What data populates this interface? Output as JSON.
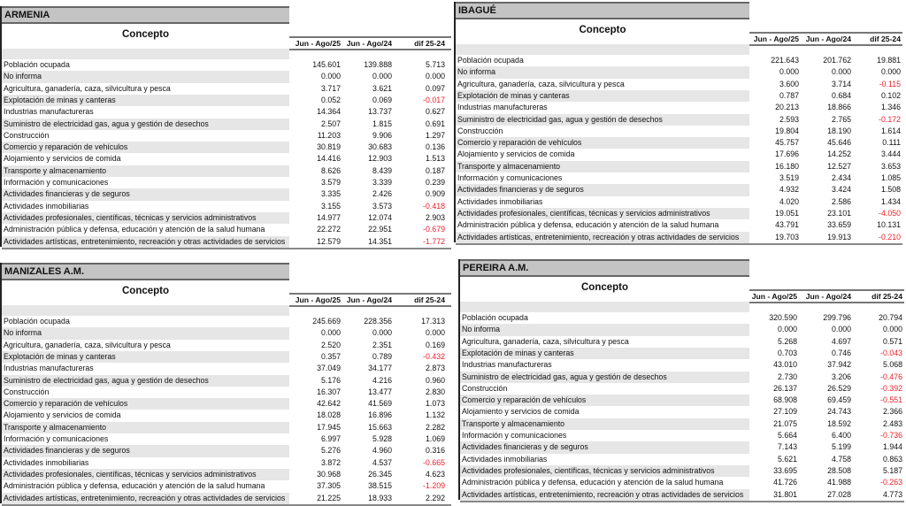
{
  "column_headers": {
    "concept": "Concepto",
    "col1": "Jun - Ago/25",
    "col2": "Jun - Ago/24",
    "col3": "dif 25-24"
  },
  "panels": [
    {
      "title": "ARMENIA",
      "rows": [
        [
          "Población ocupada",
          "145.601",
          "139.888",
          "5.713"
        ],
        [
          "No informa",
          "0.000",
          "0.000",
          "0.000"
        ],
        [
          "Agricultura, ganadería, caza, silvicultura y pesca",
          "3.717",
          "3.621",
          "0.097"
        ],
        [
          "Explotación de minas y canteras",
          "0.052",
          "0.069",
          "-0.017"
        ],
        [
          "Industrias manufactureras",
          "14.364",
          "13.737",
          "0.627"
        ],
        [
          "Suministro de electricidad gas, agua y gestión de desechos",
          "2.507",
          "1.815",
          "0.691"
        ],
        [
          "Construcción",
          "11.203",
          "9.906",
          "1.297"
        ],
        [
          "Comercio y reparación de vehículos",
          "30.819",
          "30.683",
          "0.136"
        ],
        [
          "Alojamiento y servicios de comida",
          "14.416",
          "12.903",
          "1.513"
        ],
        [
          "Transporte y almacenamiento",
          "8.626",
          "8.439",
          "0.187"
        ],
        [
          "Información y comunicaciones",
          "3.579",
          "3.339",
          "0.239"
        ],
        [
          "Actividades financieras y de seguros",
          "3.335",
          "2.426",
          "0.909"
        ],
        [
          "Actividades inmobiliarias",
          "3.155",
          "3.573",
          "-0.418"
        ],
        [
          "Actividades profesionales, científicas, técnicas y servicios administrativos",
          "14.977",
          "12.074",
          "2.903"
        ],
        [
          "Administración pública y defensa, educación y atención de la salud humana",
          "22.272",
          "22.951",
          "-0.679"
        ],
        [
          "Actividades artísticas, entretenimiento, recreación y otras actividades de servicios",
          "12.579",
          "14.351",
          "-1.772"
        ]
      ]
    },
    {
      "title": "IBAGUÉ",
      "rows": [
        [
          "Población ocupada",
          "221.643",
          "201.762",
          "19.881"
        ],
        [
          "No informa",
          "0.000",
          "0.000",
          "0.000"
        ],
        [
          "Agricultura, ganadería, caza, silvicultura y pesca",
          "3.600",
          "3.714",
          "-0.115"
        ],
        [
          "Explotación de minas y canteras",
          "0.787",
          "0.684",
          "0.102"
        ],
        [
          "Industrias manufactureras",
          "20.213",
          "18.866",
          "1.346"
        ],
        [
          "Suministro de electricidad gas, agua y gestión de desechos",
          "2.593",
          "2.765",
          "-0.172"
        ],
        [
          "Construcción",
          "19.804",
          "18.190",
          "1.614"
        ],
        [
          "Comercio y reparación de vehículos",
          "45.757",
          "45.646",
          "0.111"
        ],
        [
          "Alojamiento y servicios de comida",
          "17.696",
          "14.252",
          "3.444"
        ],
        [
          "Transporte y almacenamiento",
          "16.180",
          "12.527",
          "3.653"
        ],
        [
          "Información y comunicaciones",
          "3.519",
          "2.434",
          "1.085"
        ],
        [
          "Actividades financieras y de seguros",
          "4.932",
          "3.424",
          "1.508"
        ],
        [
          "Actividades inmobiliarias",
          "4.020",
          "2.586",
          "1.434"
        ],
        [
          "Actividades profesionales, científicas, técnicas y servicios administrativos",
          "19.051",
          "23.101",
          "-4.050"
        ],
        [
          "Administración pública y defensa, educación y atención de la salud humana",
          "43.791",
          "33.659",
          "10.131"
        ],
        [
          "Actividades artísticas, entretenimiento, recreación y otras actividades de servicios",
          "19.703",
          "19.913",
          "-0.210"
        ]
      ]
    },
    {
      "title": "MANIZALES A.M.",
      "rows": [
        [
          "Población ocupada",
          "245.669",
          "228.356",
          "17.313"
        ],
        [
          "No informa",
          "0.000",
          "0.000",
          "0.000"
        ],
        [
          "Agricultura, ganadería, caza, silvicultura y pesca",
          "2.520",
          "2.351",
          "0.169"
        ],
        [
          "Explotación de minas y canteras",
          "0.357",
          "0.789",
          "-0.432"
        ],
        [
          "Industrias manufactureras",
          "37.049",
          "34.177",
          "2.873"
        ],
        [
          "Suministro de electricidad gas, agua y gestión de desechos",
          "5.176",
          "4.216",
          "0.960"
        ],
        [
          "Construcción",
          "16.307",
          "13.477",
          "2.830"
        ],
        [
          "Comercio y reparación de vehículos",
          "42.642",
          "41.569",
          "1.073"
        ],
        [
          "Alojamiento y servicios de comida",
          "18.028",
          "16.896",
          "1.132"
        ],
        [
          "Transporte y almacenamiento",
          "17.945",
          "15.663",
          "2.282"
        ],
        [
          "Información y comunicaciones",
          "6.997",
          "5.928",
          "1.069"
        ],
        [
          "Actividades financieras y de seguros",
          "5.276",
          "4.960",
          "0.316"
        ],
        [
          "Actividades inmobiliarias",
          "3.872",
          "4.537",
          "-0.665"
        ],
        [
          "Actividades profesionales, científicas, técnicas y servicios administrativos",
          "30.968",
          "26.345",
          "4.623"
        ],
        [
          "Administración pública y defensa, educación y atención de la salud humana",
          "37.305",
          "38.515",
          "-1.209"
        ],
        [
          "Actividades artísticas, entretenimiento, recreación y otras actividades de servicios",
          "21.225",
          "18.933",
          "2.292"
        ]
      ]
    },
    {
      "title": "PEREIRA A.M.",
      "rows": [
        [
          "Población ocupada",
          "320.590",
          "299.796",
          "20.794"
        ],
        [
          "No informa",
          "0.000",
          "0.000",
          "0.000"
        ],
        [
          "Agricultura, ganadería, caza, silvicultura y pesca",
          "5.268",
          "4.697",
          "0.571"
        ],
        [
          "Explotación de minas y canteras",
          "0.703",
          "0.746",
          "-0.043"
        ],
        [
          "Industrias manufactureras",
          "43.010",
          "37.942",
          "5.068"
        ],
        [
          "Suministro de electricidad gas, agua y gestión de desechos",
          "2.730",
          "3.206",
          "-0.476"
        ],
        [
          "Construcción",
          "26.137",
          "26.529",
          "-0.392"
        ],
        [
          "Comercio y reparación de vehículos",
          "68.908",
          "69.459",
          "-0.551"
        ],
        [
          "Alojamiento y servicios de comida",
          "27.109",
          "24.743",
          "2.366"
        ],
        [
          "Transporte y almacenamiento",
          "21.075",
          "18.592",
          "2.483"
        ],
        [
          "Información y comunicaciones",
          "5.664",
          "6.400",
          "-0.736"
        ],
        [
          "Actividades financieras y de seguros",
          "7.143",
          "5.199",
          "1.944"
        ],
        [
          "Actividades inmobiliarias",
          "5.621",
          "4.758",
          "0.863"
        ],
        [
          "Actividades profesionales, científicas, técnicas y servicios administrativos",
          "33.695",
          "28.508",
          "5.187"
        ],
        [
          "Administración pública y defensa, educación y atención de la salud humana",
          "41.726",
          "41.988",
          "-0.263"
        ],
        [
          "Actividades artísticas, entretenimiento, recreación y otras actividades de servicios",
          "31.801",
          "27.028",
          "4.773"
        ]
      ]
    }
  ],
  "colors": {
    "negative": "#f0202a",
    "title_bg": "#c4c4c4",
    "row_alt": "#e6e6e6"
  }
}
